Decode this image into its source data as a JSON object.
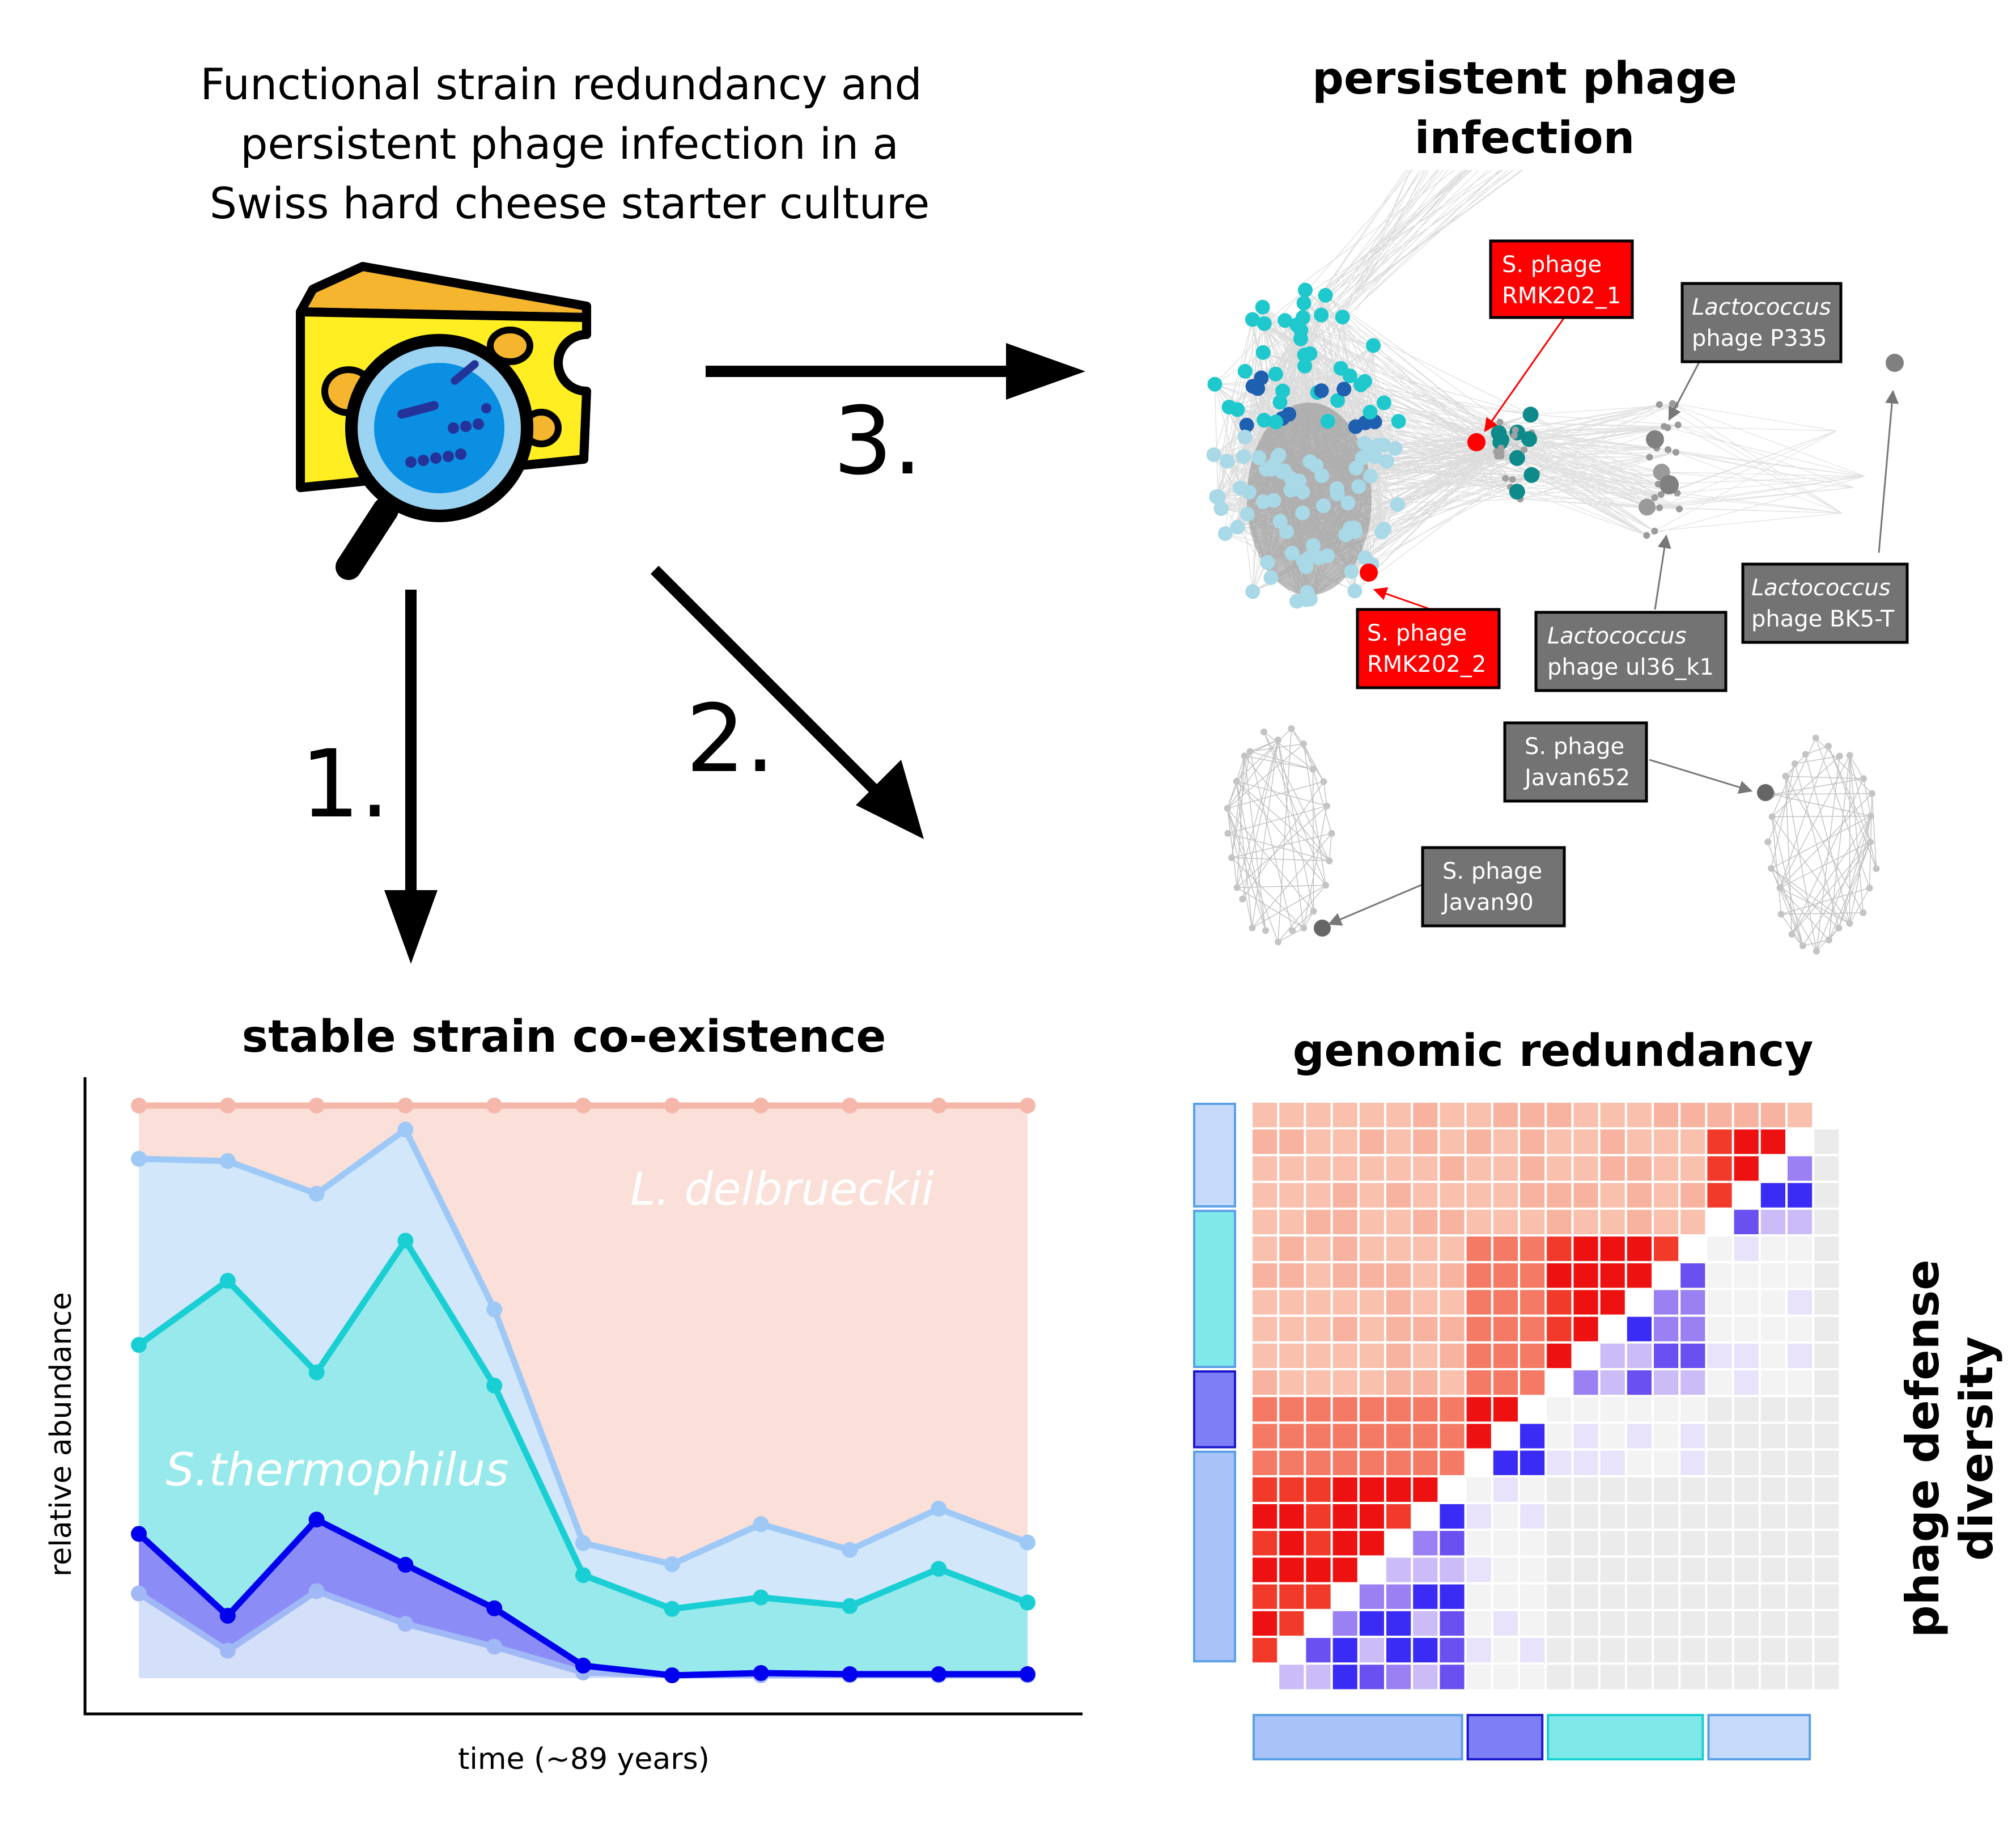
{
  "main_title": [
    "Functional strain redundancy and",
    "persistent phage infection in a",
    "Swiss hard cheese starter culture"
  ],
  "arrows": {
    "one": "1.",
    "two": "2.",
    "three": "3."
  },
  "panel_infection": {
    "title": [
      "persistent phage",
      "infection"
    ],
    "labels": {
      "rmk1": {
        "line1": "S. phage",
        "line2": "RMK202_1",
        "fill": "#ff0000"
      },
      "rmk2": {
        "line1": "S. phage",
        "line2": "RMK202_2",
        "fill": "#ff0000"
      },
      "p335": {
        "line1": "Lactococcus",
        "line2": "phage P335",
        "fill": "#737373"
      },
      "ul36": {
        "line1": "Lactococcus",
        "line2": "phage ul36_k1",
        "fill": "#737373"
      },
      "bk5": {
        "line1": "Lactococcus",
        "line2": "phage BK5-T",
        "fill": "#737373"
      },
      "javan652": {
        "line1": "S. phage",
        "line2": "Javan652",
        "fill": "#737373"
      },
      "javan90": {
        "line1": "S. phage",
        "line2": "Javan90",
        "fill": "#737373"
      }
    }
  },
  "panel_coexistence": {
    "title": "stable strain co-existence",
    "xlabel": "time (~89 years)",
    "ylabel": "relative abundance",
    "label_ldel": "L. delbrueckii",
    "label_sth": "S.thermophilus",
    "chart_data": {
      "type": "area",
      "x": [
        1,
        2,
        3,
        4,
        5,
        6,
        7,
        8,
        9,
        10,
        11
      ],
      "ylim": [
        0,
        1
      ],
      "series": [
        {
          "color": "#a0b8f5",
          "values": [
            0.148,
            0.048,
            0.152,
            0.095,
            0.055,
            0.01,
            0.005,
            0.005,
            0.005,
            0.005,
            0.005
          ]
        },
        {
          "color": "#0000ee",
          "values": [
            0.252,
            0.109,
            0.277,
            0.198,
            0.122,
            0.022,
            0.005,
            0.009,
            0.007,
            0.007,
            0.007
          ]
        },
        {
          "color": "#19cfd4",
          "values": [
            0.582,
            0.694,
            0.534,
            0.764,
            0.511,
            0.18,
            0.121,
            0.141,
            0.126,
            0.191,
            0.132
          ]
        },
        {
          "color": "#9ec9f7",
          "values": [
            0.907,
            0.903,
            0.846,
            0.958,
            0.644,
            0.236,
            0.199,
            0.269,
            0.224,
            0.296,
            0.237
          ]
        },
        {
          "color": "#f6b7ab",
          "values": [
            1,
            1,
            1,
            1,
            1,
            1,
            1,
            1,
            1,
            1,
            1
          ]
        }
      ]
    }
  },
  "panel_redundancy": {
    "title": "genomic redundancy",
    "side_label": [
      "phage defense",
      "diversity"
    ],
    "groups": [
      {
        "size": 8,
        "color": "#a9c2f8"
      },
      {
        "size": 3,
        "color": "#7e7ef6"
      },
      {
        "size": 6,
        "color": "#7fe8e8"
      },
      {
        "size": 4,
        "color": "#c6dbfb"
      }
    ]
  }
}
